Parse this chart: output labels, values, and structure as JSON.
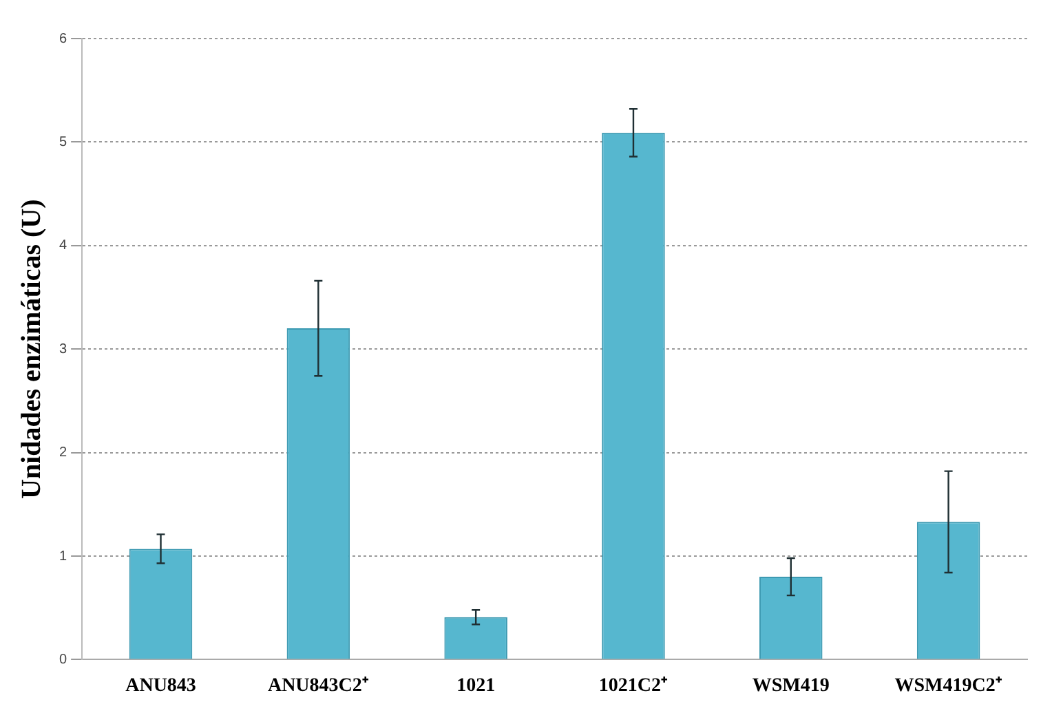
{
  "chart_data": {
    "type": "bar",
    "ylabel": "Unidades enzimáticas (U)",
    "categories": [
      "ANU843",
      "ANU843C2⁺",
      "1021",
      "1021C2⁺",
      "WSM419",
      "WSM419C2⁺"
    ],
    "values": [
      1.07,
      3.2,
      0.41,
      5.09,
      0.8,
      1.33
    ],
    "errors": [
      0.14,
      0.46,
      0.07,
      0.23,
      0.18,
      0.49
    ],
    "color": "#56b7cf",
    "ylim": [
      0,
      6
    ],
    "yticks": [
      0,
      1,
      2,
      3,
      4,
      5,
      6
    ],
    "grid": "y",
    "legend": false
  }
}
